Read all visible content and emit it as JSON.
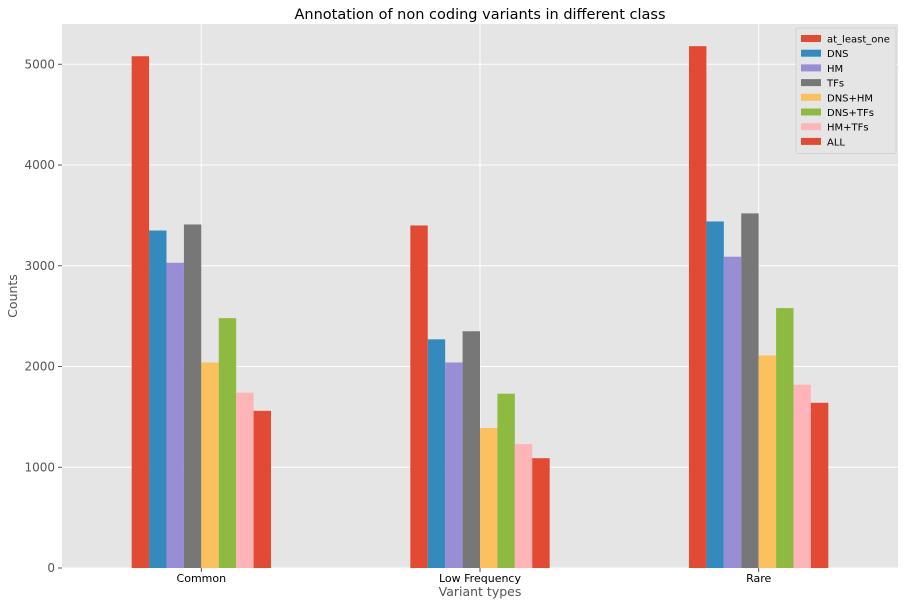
{
  "chart_data": {
    "type": "bar",
    "title": "Annotation of non coding variants in different class",
    "xlabel": "Variant types",
    "ylabel": "Counts",
    "categories": [
      "Common",
      "Low Frequency",
      "Rare"
    ],
    "ylim": [
      0,
      5400
    ],
    "yticks": [
      0,
      1000,
      2000,
      3000,
      4000,
      5000
    ],
    "grid": true,
    "legend_position": "top-right",
    "series": [
      {
        "name": "at_least_one",
        "color": "#E24A33",
        "values": [
          5080,
          3400,
          5180
        ]
      },
      {
        "name": "DNS",
        "color": "#348ABD",
        "values": [
          3350,
          2270,
          3440
        ]
      },
      {
        "name": "HM",
        "color": "#988ED5",
        "values": [
          3030,
          2040,
          3090
        ]
      },
      {
        "name": "TFs",
        "color": "#777777",
        "values": [
          3410,
          2350,
          3520
        ]
      },
      {
        "name": "DNS+HM",
        "color": "#FBC15E",
        "values": [
          2040,
          1390,
          2110
        ]
      },
      {
        "name": "DNS+TFs",
        "color": "#8EBA42",
        "values": [
          2480,
          1730,
          2580
        ]
      },
      {
        "name": "HM+TFs",
        "color": "#FFB5B8",
        "values": [
          1740,
          1230,
          1820
        ]
      },
      {
        "name": "ALL",
        "color": "#E24A33",
        "values": [
          1560,
          1090,
          1640
        ]
      }
    ]
  }
}
